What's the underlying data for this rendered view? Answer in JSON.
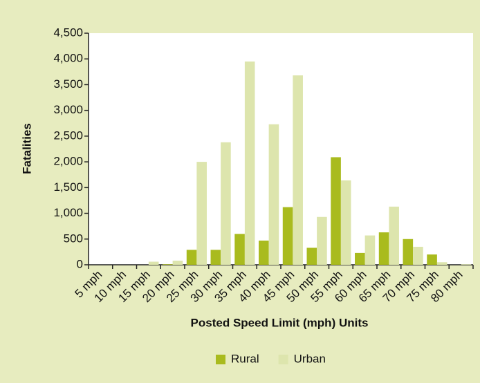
{
  "chart_data": {
    "type": "bar",
    "y_label": "Fatalities",
    "x_label": "Posted Speed Limit (mph) Units",
    "categories": [
      "5 mph",
      "10 mph",
      "15 mph",
      "20 mph",
      "25 mph",
      "30 mph",
      "35 mph",
      "40 mph",
      "45 mph",
      "50 mph",
      "55 mph",
      "60 mph",
      "65 mph",
      "70 mph",
      "75 mph",
      "80 mph"
    ],
    "series": [
      {
        "name": "Rural",
        "color": "#a9bb1e",
        "values": [
          0,
          0,
          0,
          10,
          290,
          290,
          600,
          470,
          1120,
          330,
          2090,
          230,
          630,
          500,
          200,
          0
        ]
      },
      {
        "name": "Urban",
        "color": "#dde5ad",
        "values": [
          0,
          0,
          60,
          80,
          2000,
          2380,
          3950,
          2730,
          3680,
          930,
          1640,
          570,
          1130,
          350,
          50,
          10
        ]
      }
    ],
    "ylim": [
      0,
      4500
    ],
    "yticks": [
      0,
      500,
      {
        "value": 1000,
        "label": "1,000"
      },
      {
        "value": 1500,
        "label": "1,500"
      },
      {
        "value": 2000,
        "label": "2,000"
      },
      {
        "value": 2500,
        "label": "2,500"
      },
      {
        "value": 3000,
        "label": "3,000"
      },
      {
        "value": 3500,
        "label": "3,500"
      },
      {
        "value": 4000,
        "label": "4,000"
      },
      {
        "value": 4500,
        "label": "4,500"
      }
    ],
    "legend": "bottom"
  }
}
